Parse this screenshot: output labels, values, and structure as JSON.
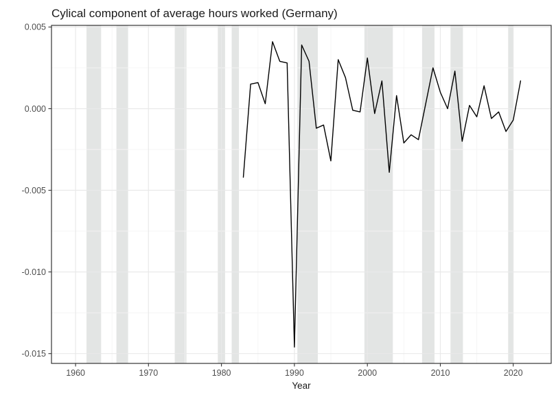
{
  "chart_data": {
    "type": "line",
    "title": "Cylical component of average hours worked (Germany)",
    "xlabel": "Year",
    "ylabel": "",
    "x_range": [
      1956.7,
      2025.2
    ],
    "y_range": [
      -0.0156,
      0.0051
    ],
    "x_ticks": [
      1960,
      1970,
      1980,
      1990,
      2000,
      2010,
      2020
    ],
    "x_minor_ticks": [
      1965,
      1975,
      1985,
      1995,
      2005,
      2015
    ],
    "y_ticks": [
      0.005,
      0,
      -0.005,
      -0.01,
      -0.015
    ],
    "y_tick_labels": [
      "0.005",
      "0.000",
      "-0.005",
      "-0.010",
      "-0.015"
    ],
    "y_minor_ticks": [
      0.0025,
      -0.0025,
      -0.0075,
      -0.0125
    ],
    "grid": "major+minor",
    "legend": "none",
    "series": [
      {
        "name": "Cyclical component of average hours worked",
        "color": "#000000",
        "x": [
          1983,
          1984,
          1985,
          1986,
          1987,
          1988,
          1989,
          1990,
          1991,
          1992,
          1993,
          1994,
          1995,
          1996,
          1997,
          1998,
          1999,
          2000,
          2001,
          2002,
          2003,
          2004,
          2005,
          2006,
          2007,
          2008,
          2009,
          2010,
          2011,
          2012,
          2013,
          2014,
          2015,
          2016,
          2017,
          2018,
          2019,
          2020,
          2021
        ],
        "y": [
          -0.0042,
          0.0015,
          0.0016,
          0.0003,
          0.0041,
          0.0029,
          0.0028,
          -0.0146,
          0.0039,
          0.0029,
          -0.0012,
          -0.001,
          -0.0032,
          0.003,
          0.0019,
          -0.0001,
          -0.0002,
          0.0031,
          -0.0003,
          0.0017,
          -0.0039,
          0.0008,
          -0.0021,
          -0.0016,
          -0.0019,
          0.0003,
          0.0025,
          0.001,
          0.0,
          0.0023,
          -0.002,
          0.0002,
          -0.0005,
          0.0014,
          -0.0006,
          -0.0002,
          -0.0014,
          -0.0007,
          0.0017
        ]
      }
    ],
    "recession_bands": [
      {
        "start": 1961.5,
        "end": 1963.5
      },
      {
        "start": 1965.6,
        "end": 1967.2
      },
      {
        "start": 1973.6,
        "end": 1975.2
      },
      {
        "start": 1979.5,
        "end": 1980.5
      },
      {
        "start": 1981.4,
        "end": 1982.4
      },
      {
        "start": 1990.4,
        "end": 1993.2
      },
      {
        "start": 1999.6,
        "end": 2003.5
      },
      {
        "start": 2007.5,
        "end": 2009.2
      },
      {
        "start": 2011.4,
        "end": 2013.1
      },
      {
        "start": 2019.3,
        "end": 2020.0
      }
    ],
    "colors": {
      "background": "#ffffff",
      "band": "#e3e5e4",
      "grid_major": "#e9e9e9",
      "grid_minor": "#f4f4f4",
      "panel_border": "#333333",
      "tick_mark": "#333333",
      "line": "#000000"
    }
  }
}
